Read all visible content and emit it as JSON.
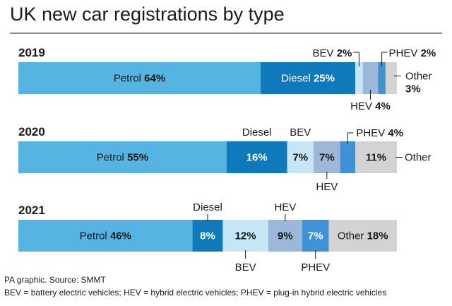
{
  "title": "UK new car registrations by type",
  "footer": {
    "source": "PA graphic. Source: SMMT",
    "key": "BEV = battery electric vehicles; HEV = hybrid electric vehicles; PHEV = plug-in hybrid electric vehicles"
  },
  "colors": {
    "Petrol": "#55b4e2",
    "Diesel": "#0f7abb",
    "BEV": "#c6e5f5",
    "HEV": "#9db7d8",
    "PHEV": "#3f93d5",
    "Other": "#d3d3d3",
    "text_dark": "#1a1a1a",
    "text_light": "#ffffff"
  },
  "chart_data": {
    "type": "bar",
    "orientation": "horizontal-stacked-100",
    "categories": [
      "2019",
      "2020",
      "2021"
    ],
    "series": [
      {
        "name": "Petrol",
        "values": [
          64,
          55,
          46
        ]
      },
      {
        "name": "Diesel",
        "values": [
          25,
          16,
          8
        ]
      },
      {
        "name": "BEV",
        "values": [
          2,
          7,
          12
        ]
      },
      {
        "name": "HEV",
        "values": [
          4,
          7,
          9
        ]
      },
      {
        "name": "PHEV",
        "values": [
          2,
          4,
          7
        ]
      },
      {
        "name": "Other",
        "values": [
          3,
          11,
          18
        ]
      }
    ],
    "labels": {
      "2019": {
        "Petrol": "64%",
        "Diesel": "25%",
        "BEV": "2%",
        "HEV": "4%",
        "PHEV": "2%",
        "Other": "3%"
      },
      "2020": {
        "Petrol": "55%",
        "Diesel": "16%",
        "BEV": "7%",
        "HEV": "7%",
        "PHEV": "4%",
        "Other": "11%"
      },
      "2021": {
        "Petrol": "46%",
        "Diesel": "8%",
        "BEV": "12%",
        "HEV": "9%",
        "PHEV": "7%",
        "Other": "18%"
      }
    },
    "title": "UK new car registrations by type",
    "xlabel": "",
    "ylabel": ""
  }
}
